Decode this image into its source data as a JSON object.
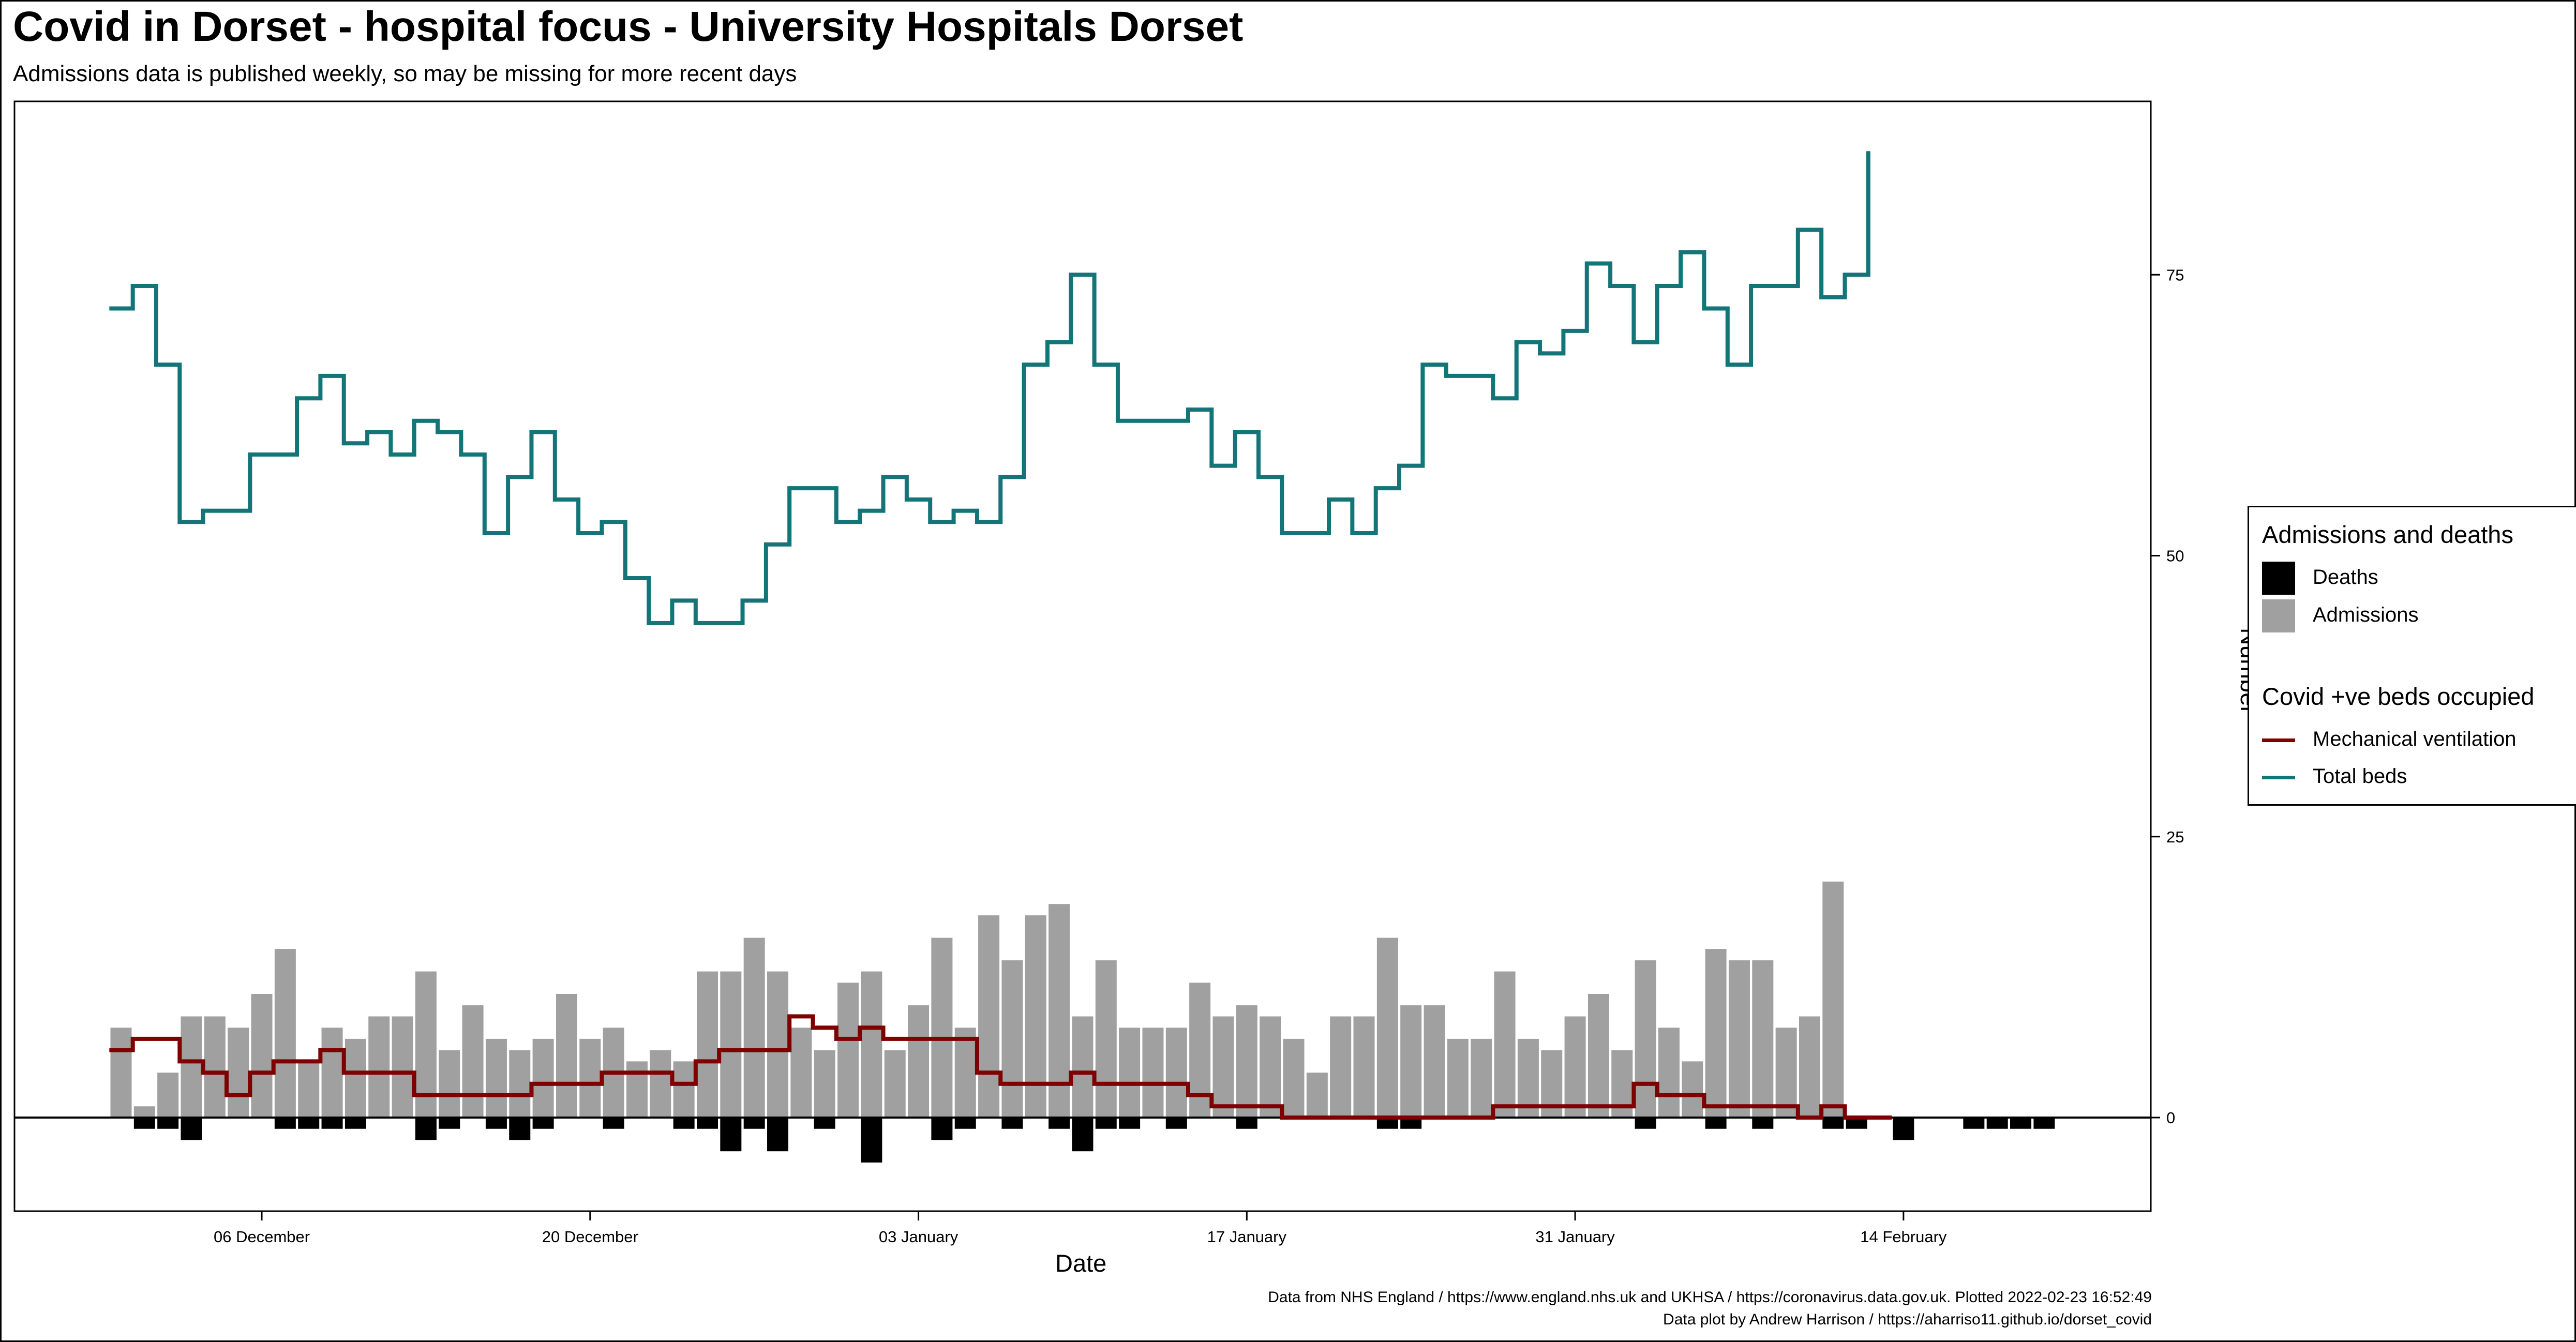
{
  "title": "Covid in Dorset - hospital focus - University Hospitals Dorset",
  "subtitle": "Admissions data is published weekly, so may be missing for more recent days",
  "legend": {
    "group1_title": "Admissions and deaths",
    "deaths_label": "Deaths",
    "admissions_label": "Admissions",
    "group2_title": "Covid +ve beds occupied",
    "ventilation_label": "Mechanical ventilation",
    "total_beds_label": "Total beds"
  },
  "captions": {
    "line1": "Data from NHS England / https://www.england.nhs.uk and UKHSA / https://coronavirus.data.gov.uk. Plotted 2022-02-23 16:52:49",
    "line2": "Data plot by Andrew Harrison / https://aharriso11.github.io/dorset_covid"
  },
  "colors": {
    "deaths": "#000000",
    "admissions": "#a0a0a0",
    "ventilation": "#7f0000",
    "total_beds": "#137577"
  },
  "chart_data": {
    "type": "bar",
    "xlabel": "Date",
    "ylabel": "Number",
    "x_ticks": [
      "06 December",
      "20 December",
      "03 January",
      "17 January",
      "31 January",
      "14 February"
    ],
    "y_ticks": [
      0,
      25,
      50,
      75
    ],
    "ylim": [
      -8,
      90
    ],
    "x_start": "2021-11-30",
    "legend_position": "right",
    "grid": false,
    "series": [
      {
        "name": "Admissions",
        "values": [
          8,
          1,
          4,
          9,
          9,
          8,
          11,
          15,
          5,
          8,
          7,
          9,
          9,
          13,
          6,
          10,
          7,
          6,
          7,
          11,
          7,
          8,
          5,
          6,
          5,
          13,
          13,
          16,
          13,
          8,
          6,
          12,
          13,
          6,
          10,
          16,
          8,
          18,
          14,
          18,
          19,
          9,
          14,
          8,
          8,
          8,
          12,
          9,
          10,
          9,
          7,
          4,
          9,
          9,
          16,
          10,
          10,
          7,
          7,
          13,
          7,
          6,
          9,
          11,
          6,
          14,
          8,
          5,
          15,
          14,
          14,
          8,
          9,
          21,
          null,
          null,
          null,
          null,
          null,
          null,
          null,
          null,
          null
        ]
      },
      {
        "name": "Deaths",
        "values": [
          0,
          1,
          1,
          2,
          0,
          0,
          0,
          1,
          1,
          1,
          1,
          0,
          0,
          2,
          1,
          0,
          1,
          2,
          1,
          0,
          0,
          1,
          0,
          0,
          1,
          1,
          3,
          1,
          3,
          0,
          1,
          0,
          4,
          0,
          0,
          2,
          1,
          0,
          1,
          0,
          1,
          3,
          1,
          1,
          0,
          1,
          0,
          0,
          1,
          0,
          0,
          0,
          0,
          0,
          1,
          1,
          0,
          0,
          0,
          0,
          0,
          0,
          0,
          0,
          0,
          1,
          0,
          0,
          1,
          0,
          1,
          0,
          0,
          1,
          1,
          0,
          2,
          0,
          0,
          1,
          1,
          1,
          1
        ]
      },
      {
        "name": "Mechanical ventilation",
        "values": [
          6,
          7,
          7,
          5,
          4,
          2,
          4,
          5,
          5,
          6,
          4,
          4,
          4,
          2,
          2,
          2,
          2,
          2,
          3,
          3,
          3,
          4,
          4,
          4,
          3,
          5,
          6,
          6,
          6,
          9,
          8,
          7,
          8,
          7,
          7,
          7,
          7,
          4,
          3,
          3,
          3,
          4,
          3,
          3,
          3,
          3,
          2,
          1,
          1,
          1,
          0,
          0,
          0,
          0,
          0,
          0,
          0,
          0,
          0,
          1,
          1,
          1,
          1,
          1,
          1,
          3,
          2,
          2,
          1,
          1,
          1,
          1,
          0,
          1,
          0,
          0
        ]
      },
      {
        "name": "Total beds",
        "values": [
          72,
          74,
          67,
          53,
          54,
          54,
          59,
          59,
          64,
          66,
          60,
          61,
          59,
          62,
          61,
          59,
          52,
          57,
          61,
          55,
          52,
          53,
          48,
          44,
          46,
          44,
          44,
          46,
          51,
          56,
          56,
          53,
          54,
          57,
          55,
          53,
          54,
          53,
          57,
          67,
          69,
          75,
          67,
          62,
          62,
          62,
          63,
          58,
          61,
          57,
          52,
          52,
          55,
          52,
          56,
          58,
          67,
          66,
          66,
          64,
          69,
          68,
          70,
          76,
          74,
          69,
          74,
          77,
          72,
          67,
          74,
          74,
          79,
          73,
          75,
          86
        ]
      }
    ]
  }
}
